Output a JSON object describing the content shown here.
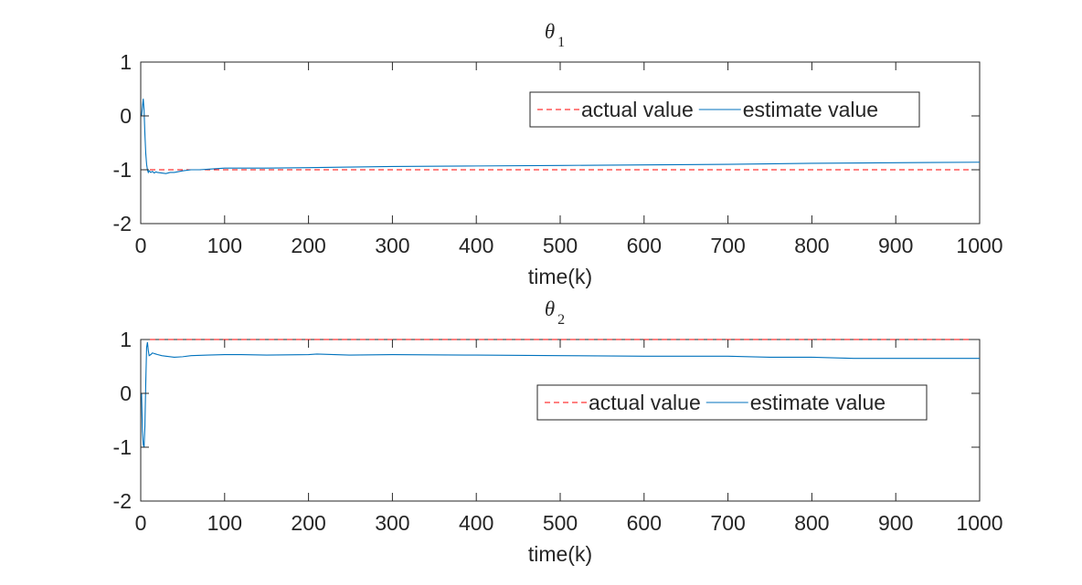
{
  "chart_data": [
    {
      "type": "line",
      "title": "θ1",
      "title_symbol": "θ",
      "title_subscript": "1",
      "xlabel": "time(k)",
      "ylabel": "",
      "xlim": [
        0,
        1000
      ],
      "ylim": [
        -2,
        1
      ],
      "xticks": [
        0,
        100,
        200,
        300,
        400,
        500,
        600,
        700,
        800,
        900,
        1000
      ],
      "yticks": [
        -2,
        -1,
        0,
        1
      ],
      "grid": false,
      "legend_position": "top-right",
      "series": [
        {
          "name": "actual value",
          "style": "dashed",
          "color": "#ff0000",
          "x": [
            0,
            1000
          ],
          "y": [
            -1,
            -1
          ]
        },
        {
          "name": "estimate value",
          "style": "solid",
          "color": "#0072bd",
          "x": [
            1,
            3,
            4,
            5,
            6,
            7,
            8,
            9,
            10,
            12,
            14,
            16,
            18,
            20,
            25,
            30,
            35,
            40,
            50,
            60,
            70,
            80,
            100,
            120,
            150,
            200,
            250,
            300,
            400,
            500,
            600,
            700,
            800,
            900,
            1000
          ],
          "y": [
            0.0,
            0.32,
            0.1,
            -0.35,
            -0.7,
            -0.9,
            -1.0,
            -1.05,
            -1.02,
            -1.05,
            -1.03,
            -1.06,
            -1.04,
            -1.05,
            -1.06,
            -1.07,
            -1.05,
            -1.05,
            -1.02,
            -1.0,
            -1.0,
            -0.99,
            -0.97,
            -0.97,
            -0.97,
            -0.96,
            -0.95,
            -0.94,
            -0.93,
            -0.92,
            -0.91,
            -0.9,
            -0.88,
            -0.87,
            -0.86
          ]
        }
      ]
    },
    {
      "type": "line",
      "title": "θ2",
      "title_symbol": "θ",
      "title_subscript": "2",
      "xlabel": "time(k)",
      "ylabel": "",
      "xlim": [
        0,
        1000
      ],
      "ylim": [
        -2,
        1
      ],
      "xticks": [
        0,
        100,
        200,
        300,
        400,
        500,
        600,
        700,
        800,
        900,
        1000
      ],
      "yticks": [
        -2,
        -1,
        0,
        1
      ],
      "grid": false,
      "legend_position": "middle-right",
      "series": [
        {
          "name": "actual value",
          "style": "dashed",
          "color": "#ff0000",
          "x": [
            0,
            1000
          ],
          "y": [
            1,
            1
          ]
        },
        {
          "name": "estimate value",
          "style": "solid",
          "color": "#0072bd",
          "x": [
            1,
            2,
            3,
            4,
            5,
            6,
            7,
            8,
            9,
            10,
            12,
            14,
            16,
            18,
            20,
            25,
            30,
            40,
            50,
            60,
            80,
            100,
            120,
            150,
            200,
            210,
            250,
            300,
            400,
            500,
            600,
            700,
            750,
            800,
            850,
            900,
            1000
          ],
          "y": [
            0.0,
            -0.7,
            -0.95,
            -1.0,
            -0.6,
            0.2,
            0.85,
            0.95,
            0.8,
            0.7,
            0.72,
            0.75,
            0.74,
            0.73,
            0.72,
            0.7,
            0.69,
            0.67,
            0.68,
            0.7,
            0.71,
            0.72,
            0.72,
            0.71,
            0.72,
            0.73,
            0.71,
            0.72,
            0.71,
            0.7,
            0.69,
            0.69,
            0.67,
            0.67,
            0.65,
            0.65,
            0.65
          ]
        }
      ]
    }
  ]
}
